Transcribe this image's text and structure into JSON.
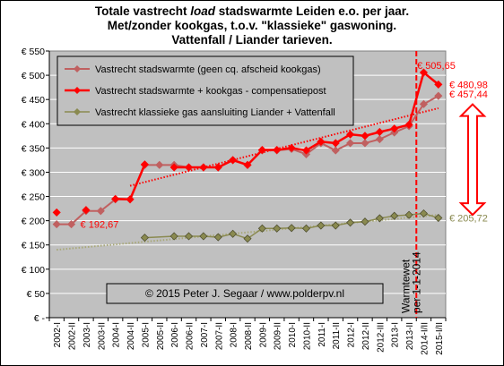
{
  "chart_data": {
    "type": "line",
    "title_lines": [
      [
        "Totale vastrecht ",
        "load",
        " stadswarmte Leiden e.o. per jaar."
      ],
      "Met/zonder kookgas, t.o.v. \"klassieke\" gaswoning.",
      "Vattenfall / Liander tarieven."
    ],
    "ylim": [
      0,
      550
    ],
    "y_ticks": [
      0,
      50,
      100,
      150,
      200,
      250,
      300,
      350,
      400,
      450,
      500,
      550
    ],
    "y_tick_labels": [
      "€ -",
      "€ 50",
      "€ 100",
      "€ 150",
      "€ 200",
      "€ 250",
      "€ 300",
      "€ 350",
      "€ 400",
      "€ 450",
      "€ 500",
      "€ 550"
    ],
    "categories": [
      "2002-I",
      "2002-II",
      "2003-I",
      "2003-II",
      "2004-I",
      "2004-II",
      "2005-I",
      "2005-II",
      "2006-I",
      "2006-II",
      "2007-I",
      "2007-II",
      "2008-I",
      "2008-II",
      "2009-I",
      "2009-II",
      "2010-I",
      "2010-II",
      "2011-I",
      "2011-II",
      "2012-I",
      "2012-II",
      "2012-III",
      "2013-I",
      "2013-II",
      "2014-I/II",
      "2015-I/II"
    ],
    "grid": true,
    "legend_position": "top-left",
    "series": [
      {
        "name": "Vastrecht stadswarmte (geen cq. afscheid kookgas)",
        "color": "#c06060",
        "marker": "diamond",
        "values": [
          192.67,
          192.67,
          220,
          220,
          244,
          244,
          315,
          315,
          315,
          310,
          310,
          310,
          325,
          315,
          345,
          345,
          348,
          337,
          360,
          345,
          360,
          360,
          368,
          382,
          395,
          440.5,
          457.44
        ]
      },
      {
        "name": "Vastrecht stadswarmte + kookgas - compensatiepost",
        "color": "#ff0000",
        "marker": "diamond",
        "values": [
          217,
          null,
          222,
          null,
          245,
          244,
          316,
          null,
          310,
          310,
          310,
          310,
          325,
          315,
          346,
          346,
          350,
          345,
          363,
          360,
          378,
          375,
          383,
          390,
          398,
          505.65,
          480.98
        ]
      },
      {
        "name": "Vastrecht klassieke gas aansluiting Liander + Vattenfall",
        "color": "#8a8a50",
        "marker": "diamond",
        "values": [
          null,
          null,
          null,
          null,
          null,
          null,
          165,
          null,
          168,
          168,
          168,
          166,
          173,
          163,
          184,
          184,
          185,
          184,
          190,
          190,
          196,
          198,
          205,
          210,
          212,
          215,
          205.72
        ]
      }
    ],
    "trendlines": [
      {
        "series": 1,
        "x": [
          5,
          26
        ],
        "y": [
          272,
          432
        ],
        "color": "#ff0000"
      },
      {
        "series": 2,
        "x": [
          0,
          26
        ],
        "y": [
          140,
          212
        ],
        "color": "#a8a878"
      }
    ],
    "annotations": {
      "low_label": "€ 192,67",
      "peak_label": "€ 505,65",
      "right_labels": [
        "€ 480,98",
        "€ 457,44"
      ],
      "gas_label": "€ 205,72",
      "vertical_line_text": [
        "Warmtewet",
        "per 1-1-2014"
      ],
      "copyright": "© 2015 Peter J. Segaar / www.polderpv.nl"
    },
    "colors": {
      "plot_background": "#c0c0c0",
      "grid": "#ffffff",
      "legend_background": "#c0c0c0",
      "arrow": "#ff0000",
      "vertical_line": "#ff0000"
    }
  }
}
